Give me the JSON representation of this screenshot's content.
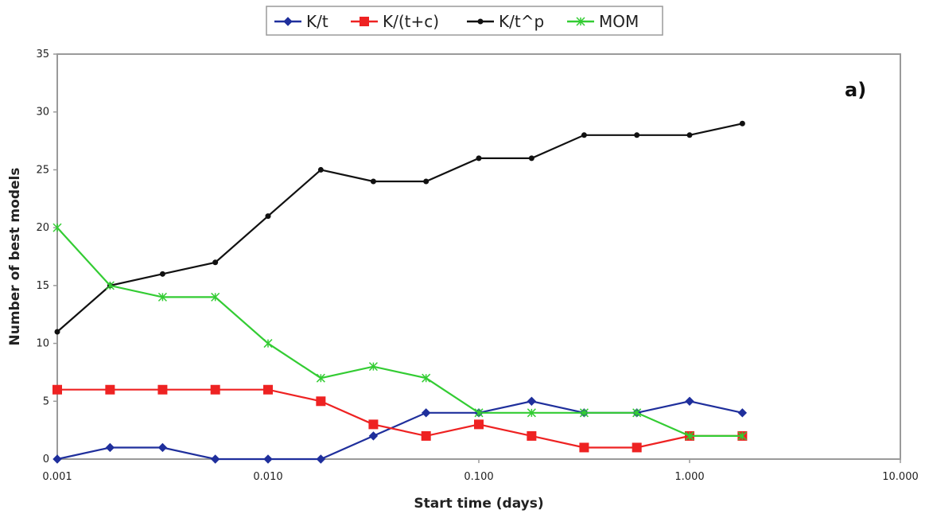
{
  "chart_data": {
    "type": "line",
    "annotation": "a)",
    "xlabel": "Start time (days)",
    "ylabel": "Number of best models",
    "x_scale": "log",
    "xlim": [
      0.001,
      10
    ],
    "ylim": [
      0,
      35
    ],
    "x_ticks": [
      "0.001",
      "0.010",
      "0.100",
      "1.000",
      "10.000"
    ],
    "y_ticks": [
      "0",
      "5",
      "10",
      "15",
      "20",
      "25",
      "30",
      "35"
    ],
    "legend_position": "top-center",
    "grid": false,
    "x": [
      0.001,
      0.00178,
      0.00316,
      0.00562,
      0.01,
      0.0178,
      0.0316,
      0.0562,
      0.1,
      0.178,
      0.316,
      0.562,
      1.0,
      1.78
    ],
    "series": [
      {
        "name": "K/t",
        "color": "#1f2f9c",
        "marker": "diamond",
        "values": [
          0,
          1,
          1,
          0,
          0,
          0,
          2,
          4,
          4,
          5,
          4,
          4,
          5,
          4
        ]
      },
      {
        "name": "K/(t+c)",
        "color": "#ee2222",
        "marker": "square",
        "values": [
          6,
          6,
          6,
          6,
          6,
          5,
          3,
          2,
          3,
          2,
          1,
          1,
          2,
          2
        ]
      },
      {
        "name": "K/t^p",
        "color": "#111111",
        "marker": "dot",
        "values": [
          11,
          15,
          16,
          17,
          21,
          25,
          24,
          24,
          26,
          26,
          28,
          28,
          28,
          29
        ]
      },
      {
        "name": "MOM",
        "color": "#33cc33",
        "marker": "x",
        "values": [
          20,
          15,
          14,
          14,
          10,
          7,
          8,
          7,
          4,
          4,
          4,
          4,
          2,
          2
        ]
      }
    ]
  }
}
